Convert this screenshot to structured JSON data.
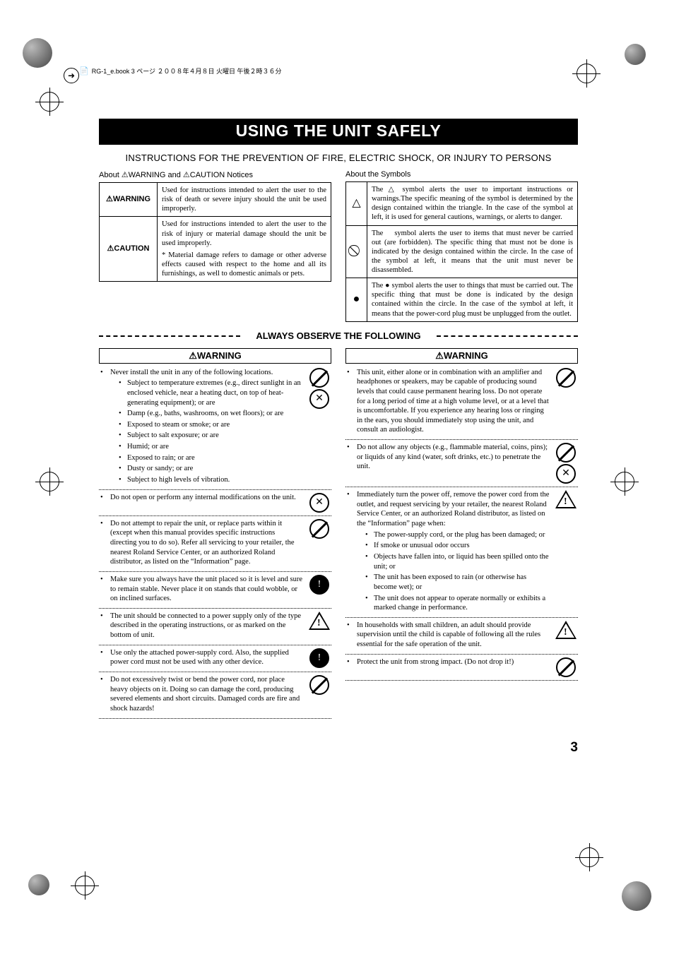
{
  "meta": {
    "header_line": "RG-1_e.book 3 ページ ２００８年４月８日 火曜日 午後２時３６分"
  },
  "title": "USING THE UNIT SAFELY",
  "subtitle": "INSTRUCTIONS FOR THE PREVENTION OF FIRE, ELECTRIC SHOCK, OR INJURY TO PERSONS",
  "notices_heading": "About ⚠WARNING and ⚠CAUTION Notices",
  "symbols_heading": "About the Symbols",
  "notice_rows": [
    {
      "label": "⚠WARNING",
      "text": "Used for instructions intended to alert the user to the risk of death or severe injury should the unit be used improperly."
    },
    {
      "label": "⚠CAUTION",
      "text": "Used for instructions intended to alert the user to the risk of injury or material damage should the unit be used improperly.",
      "note": "* Material damage refers to damage or other adverse effects caused with respect to the home and all its furnishings, as well to domestic animals or pets."
    }
  ],
  "symbol_rows": [
    {
      "icon": "△",
      "text": "The △ symbol alerts the user to important instructions or warnings.The specific meaning of the symbol is determined by the design contained within the triangle. In the case of the symbol at left, it is used for general cautions, warnings, or alerts to danger."
    },
    {
      "icon": "⃠",
      "text": "The ⃠ symbol alerts the user to items that must never be carried out (are forbidden). The specific thing that must not be done is indicated by the design contained within the circle. In the case of the symbol at left, it means that the unit must never be disassembled."
    },
    {
      "icon": "●",
      "text": "The ● symbol alerts the user to things that must be carried out. The specific thing that must be done is indicated by the design contained within the circle. In the case of the symbol at left, it means that the power-cord plug must be unplugged from the outlet."
    }
  ],
  "observe": "ALWAYS OBSERVE THE FOLLOWING",
  "warning_label": "⚠WARNING",
  "left_items": [
    {
      "text": "Never install the unit in any of the following locations.",
      "picto": [
        "prohibit",
        "prohibit-x"
      ],
      "sub": [
        "Subject to temperature extremes (e.g., direct sunlight in an enclosed vehicle, near a heating duct, on top of heat-generating equipment); or are",
        "Damp (e.g., baths, washrooms, on wet floors); or are",
        "Exposed to steam or smoke; or are",
        "Subject to salt exposure; or are",
        "Humid; or are",
        "Exposed to rain; or are",
        "Dusty or sandy; or are",
        "Subject to high levels of vibration."
      ]
    },
    {
      "text": "Do not open or perform any internal modifications on the unit.",
      "picto": [
        "prohibit-x"
      ]
    },
    {
      "text": "Do not attempt to repair the unit, or replace parts within it (except when this manual provides specific instructions directing you to do so). Refer all servicing to your retailer, the nearest Roland Service Center, or an authorized Roland distributor, as listed on the “Information” page.",
      "picto": [
        "prohibit"
      ]
    },
    {
      "text": "Make sure you always have the unit placed so it is level and sure to remain stable. Never place it on stands that could wobble, or on inclined surfaces.",
      "picto": [
        "solid-bang"
      ]
    },
    {
      "text": "The unit should be connected to a power supply only of the type described in the operating instructions, or as marked on the bottom of unit.",
      "picto": [
        "tri-bang"
      ]
    },
    {
      "text": "Use only the attached power-supply cord. Also, the supplied power cord must not be used with any other device.",
      "picto": [
        "solid-bang"
      ]
    },
    {
      "text": "Do not excessively twist or bend the power cord, nor place heavy objects on it. Doing so can damage the cord, producing severed elements and short circuits. Damaged cords are fire and shock hazards!",
      "picto": [
        "prohibit"
      ]
    }
  ],
  "right_items": [
    {
      "text": "This unit, either alone or in combination with an amplifier and headphones or speakers, may be capable of producing sound levels that could cause permanent hearing loss. Do not operate for a long period of time at a high volume level, or at a level that is uncomfortable. If you experience any hearing loss or ringing in the ears, you should immediately stop using the unit, and consult an audiologist.",
      "picto": [
        "prohibit"
      ]
    },
    {
      "text": "Do not allow any objects (e.g., flammable material, coins, pins); or liquids of any kind (water, soft drinks, etc.) to penetrate the unit.",
      "picto": [
        "prohibit",
        "prohibit-x"
      ]
    },
    {
      "text": "Immediately turn the power off, remove the power cord from the outlet, and request servicing by your retailer, the nearest Roland Service Center, or an authorized Roland distributor, as listed on the “Information” page when:",
      "picto": [
        "tri-bang"
      ],
      "sub": [
        "The power-supply cord, or the plug has been damaged; or",
        "If smoke or unusual odor occurs",
        "Objects have fallen into, or liquid has been spilled onto the unit; or",
        "The unit has been exposed to rain (or otherwise has become wet); or",
        "The unit does not appear to operate normally or exhibits a marked change in performance."
      ]
    },
    {
      "text": "In households with small children, an adult should provide supervision until the child is capable of following all the rules essential for the safe operation of the unit.",
      "picto": [
        "tri-bang"
      ]
    },
    {
      "text": "Protect the unit from strong impact. (Do not drop it!)",
      "picto": [
        "prohibit"
      ]
    }
  ],
  "page_number": "3"
}
